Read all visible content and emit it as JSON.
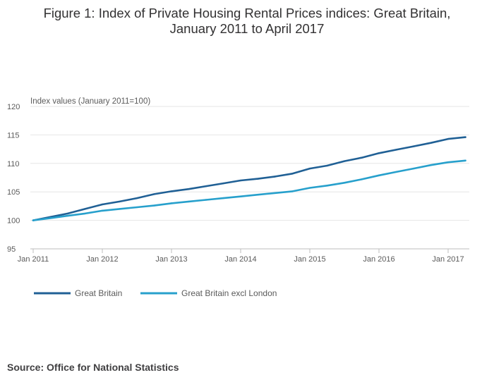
{
  "title_line1": "Figure 1: Index of Private Housing Rental Prices indices: Great Britain,",
  "title_line2": "January 2011 to April 2017",
  "source": "Source: Office for National Statistics",
  "chart_data": {
    "type": "line",
    "ylabel": "Index values (January 2011=100)",
    "ylim": [
      95,
      120
    ],
    "yticks": [
      95,
      100,
      105,
      110,
      115,
      120
    ],
    "xlim": [
      "2011-01",
      "2017-04"
    ],
    "xtick_labels": [
      "Jan 2011",
      "Jan 2012",
      "Jan 2013",
      "Jan 2014",
      "Jan 2015",
      "Jan 2016",
      "Jan 2017"
    ],
    "grid": "horizontal",
    "legend_position": "bottom",
    "series": [
      {
        "name": "Great Britain",
        "color": "#206095",
        "points": [
          [
            "2011-01",
            100.0
          ],
          [
            "2011-04",
            100.6
          ],
          [
            "2011-07",
            101.2
          ],
          [
            "2011-10",
            102.0
          ],
          [
            "2012-01",
            102.8
          ],
          [
            "2012-04",
            103.3
          ],
          [
            "2012-07",
            103.9
          ],
          [
            "2012-10",
            104.6
          ],
          [
            "2013-01",
            105.1
          ],
          [
            "2013-04",
            105.5
          ],
          [
            "2013-07",
            106.0
          ],
          [
            "2013-10",
            106.5
          ],
          [
            "2014-01",
            107.0
          ],
          [
            "2014-04",
            107.3
          ],
          [
            "2014-07",
            107.7
          ],
          [
            "2014-10",
            108.2
          ],
          [
            "2015-01",
            109.1
          ],
          [
            "2015-04",
            109.6
          ],
          [
            "2015-07",
            110.4
          ],
          [
            "2015-10",
            111.0
          ],
          [
            "2016-01",
            111.8
          ],
          [
            "2016-04",
            112.4
          ],
          [
            "2016-07",
            113.0
          ],
          [
            "2016-10",
            113.6
          ],
          [
            "2017-01",
            114.3
          ],
          [
            "2017-04",
            114.6
          ]
        ]
      },
      {
        "name": "Great Britain excl London",
        "color": "#27A0CC",
        "points": [
          [
            "2011-01",
            100.0
          ],
          [
            "2011-04",
            100.4
          ],
          [
            "2011-07",
            100.8
          ],
          [
            "2011-10",
            101.2
          ],
          [
            "2012-01",
            101.7
          ],
          [
            "2012-04",
            102.0
          ],
          [
            "2012-07",
            102.3
          ],
          [
            "2012-10",
            102.6
          ],
          [
            "2013-01",
            103.0
          ],
          [
            "2013-04",
            103.3
          ],
          [
            "2013-07",
            103.6
          ],
          [
            "2013-10",
            103.9
          ],
          [
            "2014-01",
            104.2
          ],
          [
            "2014-04",
            104.5
          ],
          [
            "2014-07",
            104.8
          ],
          [
            "2014-10",
            105.1
          ],
          [
            "2015-01",
            105.7
          ],
          [
            "2015-04",
            106.1
          ],
          [
            "2015-07",
            106.6
          ],
          [
            "2015-10",
            107.2
          ],
          [
            "2016-01",
            107.9
          ],
          [
            "2016-04",
            108.5
          ],
          [
            "2016-07",
            109.1
          ],
          [
            "2016-10",
            109.7
          ],
          [
            "2017-01",
            110.2
          ],
          [
            "2017-04",
            110.5
          ]
        ]
      }
    ]
  }
}
